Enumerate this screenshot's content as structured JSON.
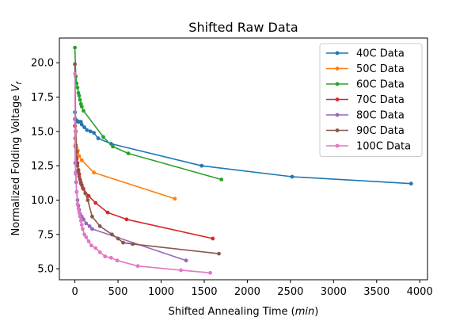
{
  "chart_data": {
    "type": "line",
    "title": "Shifted Raw Data",
    "xlabel": "Shifted Annealing Time (min)",
    "ylabel": "Normalized Folding Voltage V_f",
    "xlim": [
      -180,
      4090
    ],
    "ylim": [
      4.2,
      21.8
    ],
    "xticks": [
      0,
      500,
      1000,
      1500,
      2000,
      2500,
      3000,
      3500,
      4000
    ],
    "xtick_labels": [
      "0",
      "500",
      "1000",
      "1500",
      "2000",
      "2500",
      "3000",
      "3500",
      "4000"
    ],
    "yticks": [
      5.0,
      7.5,
      10.0,
      12.5,
      15.0,
      17.5,
      20.0
    ],
    "ytick_labels": [
      "5.0",
      "7.5",
      "10.0",
      "12.5",
      "15.0",
      "17.5",
      "20.0"
    ],
    "legend_position": "top-right",
    "series": [
      {
        "name": "40C Data",
        "color": "#1f77b4",
        "x": [
          0,
          5,
          10,
          20,
          35,
          50,
          70,
          80,
          110,
          140,
          180,
          220,
          270,
          420,
          1470,
          2520,
          3900
        ],
        "y": [
          16.4,
          15.9,
          15.8,
          15.8,
          15.7,
          15.7,
          15.7,
          15.5,
          15.3,
          15.1,
          15.0,
          14.9,
          14.5,
          14.1,
          12.5,
          11.7,
          11.2
        ]
      },
      {
        "name": "50C Data",
        "color": "#ff7f0e",
        "x": [
          0,
          5,
          10,
          20,
          35,
          50,
          80,
          220,
          1160
        ],
        "y": [
          14.5,
          13.9,
          13.9,
          13.8,
          13.6,
          13.2,
          12.9,
          12.0,
          10.1
        ]
      },
      {
        "name": "60C Data",
        "color": "#2ca02c",
        "x": [
          0,
          10,
          20,
          30,
          40,
          50,
          60,
          70,
          80,
          100,
          330,
          440,
          620,
          1700
        ],
        "y": [
          21.1,
          19.0,
          18.5,
          18.2,
          17.8,
          17.6,
          17.3,
          17.0,
          16.8,
          16.5,
          14.6,
          13.9,
          13.4,
          11.5
        ]
      },
      {
        "name": "70C Data",
        "color": "#d62728",
        "x": [
          0,
          10,
          20,
          30,
          40,
          50,
          60,
          70,
          80,
          100,
          160,
          240,
          380,
          600,
          1600
        ],
        "y": [
          15.4,
          14.0,
          13.0,
          12.7,
          12.2,
          11.9,
          11.5,
          11.3,
          11.1,
          10.8,
          10.3,
          9.8,
          9.1,
          8.6,
          7.2
        ]
      },
      {
        "name": "80C Data",
        "color": "#9467bd",
        "x": [
          0,
          5,
          10,
          15,
          20,
          30,
          40,
          50,
          60,
          80,
          100,
          130,
          170,
          200,
          1290
        ],
        "y": [
          15.9,
          12.7,
          12.0,
          11.3,
          10.6,
          10.0,
          9.6,
          9.3,
          9.0,
          8.8,
          8.6,
          8.3,
          8.1,
          7.9,
          5.6
        ]
      },
      {
        "name": "90C Data",
        "color": "#8c564b",
        "x": [
          0,
          10,
          20,
          30,
          40,
          50,
          70,
          90,
          120,
          150,
          200,
          290,
          430,
          500,
          560,
          670,
          1670
        ],
        "y": [
          19.9,
          15.0,
          13.5,
          12.5,
          12.1,
          11.7,
          11.2,
          10.9,
          10.5,
          10.0,
          8.8,
          8.1,
          7.5,
          7.2,
          6.9,
          6.8,
          6.1
        ]
      },
      {
        "name": "100C Data",
        "color": "#e377c2",
        "x": [
          0,
          5,
          10,
          20,
          30,
          40,
          50,
          60,
          70,
          80,
          90,
          110,
          130,
          160,
          190,
          240,
          290,
          350,
          420,
          490,
          730,
          1230,
          1570
        ],
        "y": [
          19.2,
          15.0,
          11.9,
          10.6,
          9.7,
          9.4,
          9.1,
          8.8,
          8.5,
          8.2,
          7.9,
          7.5,
          7.3,
          7.0,
          6.7,
          6.5,
          6.2,
          5.9,
          5.8,
          5.6,
          5.2,
          4.9,
          4.7
        ]
      }
    ]
  }
}
